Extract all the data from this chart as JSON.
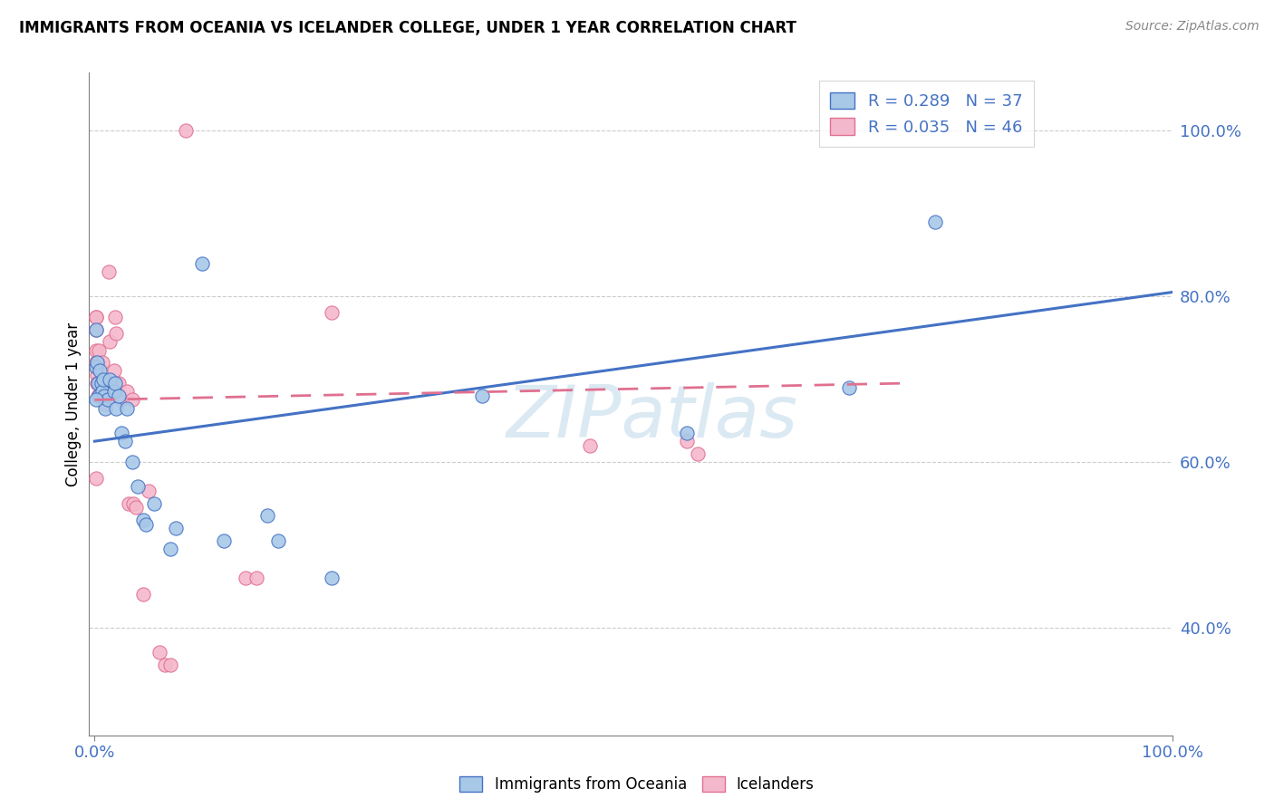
{
  "title": "IMMIGRANTS FROM OCEANIA VS ICELANDER COLLEGE, UNDER 1 YEAR CORRELATION CHART",
  "source": "Source: ZipAtlas.com",
  "ylabel": "College, Under 1 year",
  "legend_r1": "R = 0.289",
  "legend_n1": "N = 37",
  "legend_r2": "R = 0.035",
  "legend_n2": "N = 46",
  "color_blue_fill": "#a8c8e8",
  "color_blue_edge": "#4472c4",
  "color_pink_fill": "#f4b8cc",
  "color_pink_edge": "#e07090",
  "color_blue_line": "#4472c4",
  "color_pink_line": "#e07090",
  "watermark": "ZIPatlas",
  "blue_scatter": [
    [
      0.001,
      0.715
    ],
    [
      0.002,
      0.72
    ],
    [
      0.003,
      0.695
    ],
    [
      0.004,
      0.68
    ],
    [
      0.005,
      0.71
    ],
    [
      0.006,
      0.695
    ],
    [
      0.007,
      0.685
    ],
    [
      0.008,
      0.7
    ],
    [
      0.009,
      0.68
    ],
    [
      0.01,
      0.665
    ],
    [
      0.012,
      0.675
    ],
    [
      0.014,
      0.7
    ],
    [
      0.018,
      0.685
    ],
    [
      0.019,
      0.695
    ],
    [
      0.02,
      0.665
    ],
    [
      0.022,
      0.68
    ],
    [
      0.025,
      0.635
    ],
    [
      0.028,
      0.625
    ],
    [
      0.03,
      0.665
    ],
    [
      0.035,
      0.6
    ],
    [
      0.04,
      0.57
    ],
    [
      0.045,
      0.53
    ],
    [
      0.048,
      0.525
    ],
    [
      0.055,
      0.55
    ],
    [
      0.07,
      0.495
    ],
    [
      0.075,
      0.52
    ],
    [
      0.1,
      0.84
    ],
    [
      0.12,
      0.505
    ],
    [
      0.16,
      0.535
    ],
    [
      0.17,
      0.505
    ],
    [
      0.22,
      0.46
    ],
    [
      0.36,
      0.68
    ],
    [
      0.55,
      0.635
    ],
    [
      0.7,
      0.69
    ],
    [
      0.78,
      0.89
    ],
    [
      0.001,
      0.76
    ],
    [
      0.001,
      0.675
    ]
  ],
  "pink_scatter": [
    [
      0.001,
      0.775
    ],
    [
      0.001,
      0.76
    ],
    [
      0.001,
      0.735
    ],
    [
      0.001,
      0.72
    ],
    [
      0.001,
      0.715
    ],
    [
      0.002,
      0.72
    ],
    [
      0.002,
      0.705
    ],
    [
      0.002,
      0.695
    ],
    [
      0.003,
      0.72
    ],
    [
      0.003,
      0.695
    ],
    [
      0.003,
      0.68
    ],
    [
      0.004,
      0.735
    ],
    [
      0.005,
      0.695
    ],
    [
      0.005,
      0.68
    ],
    [
      0.006,
      0.68
    ],
    [
      0.007,
      0.72
    ],
    [
      0.008,
      0.69
    ],
    [
      0.01,
      0.67
    ],
    [
      0.013,
      0.83
    ],
    [
      0.014,
      0.745
    ],
    [
      0.015,
      0.695
    ],
    [
      0.016,
      0.695
    ],
    [
      0.018,
      0.71
    ],
    [
      0.019,
      0.775
    ],
    [
      0.02,
      0.755
    ],
    [
      0.022,
      0.695
    ],
    [
      0.025,
      0.675
    ],
    [
      0.03,
      0.685
    ],
    [
      0.032,
      0.55
    ],
    [
      0.035,
      0.675
    ],
    [
      0.036,
      0.55
    ],
    [
      0.038,
      0.545
    ],
    [
      0.045,
      0.44
    ],
    [
      0.05,
      0.565
    ],
    [
      0.06,
      0.37
    ],
    [
      0.065,
      0.355
    ],
    [
      0.07,
      0.355
    ],
    [
      0.085,
      1.0
    ],
    [
      0.14,
      0.46
    ],
    [
      0.15,
      0.46
    ],
    [
      0.22,
      0.78
    ],
    [
      0.46,
      0.62
    ],
    [
      0.55,
      0.625
    ],
    [
      0.56,
      0.61
    ],
    [
      0.001,
      0.775
    ],
    [
      0.001,
      0.58
    ]
  ],
  "blue_line_x": [
    0.0,
    1.0
  ],
  "blue_line_y": [
    0.625,
    0.805
  ],
  "pink_line_x": [
    0.0,
    0.75
  ],
  "pink_line_y": [
    0.675,
    0.695
  ],
  "xlim": [
    -0.005,
    1.0
  ],
  "ylim": [
    0.27,
    1.07
  ],
  "yticks": [
    0.4,
    0.6,
    0.8,
    1.0
  ],
  "ytick_labels": [
    "40.0%",
    "60.0%",
    "80.0%",
    "100.0%"
  ],
  "xticks": [
    0.0,
    1.0
  ],
  "xtick_labels": [
    "0.0%",
    "100.0%"
  ],
  "figsize": [
    14.06,
    8.92
  ],
  "dpi": 100
}
